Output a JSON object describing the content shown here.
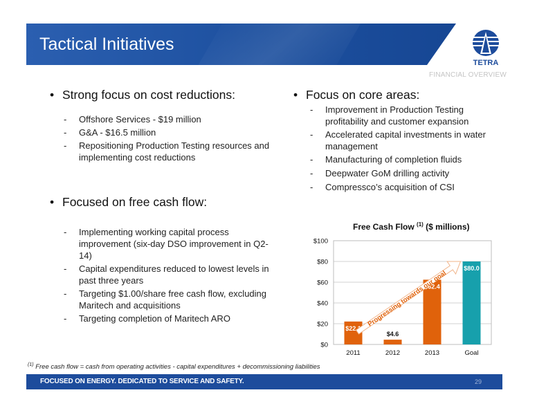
{
  "header": {
    "title": "Tactical Initiatives",
    "section_label": "FINANCIAL OVERVIEW",
    "logo_text": "TETRA"
  },
  "left": {
    "bullet1": "Strong focus on cost reductions:",
    "bullet1_items": [
      "Offshore Services - $19 million",
      "G&A  - $16.5 million",
      "Repositioning Production Testing resources and implementing cost reductions"
    ],
    "bullet2": "Focused on free cash flow:",
    "bullet2_items": [
      "Implementing working capital process improvement (six-day DSO improvement in Q2-14)",
      "Capital expenditures reduced to lowest levels in past three years",
      "Targeting $1.00/share free cash flow, excluding Maritech and acquisitions",
      "Targeting completion of Maritech ARO"
    ]
  },
  "right": {
    "bullet": "Focus on core areas:",
    "items": [
      "Improvement in Production Testing profitability and customer expansion",
      "Accelerated capital investments in water management",
      "Manufacturing of completion fluids",
      "Deepwater GoM drilling activity",
      "Compressco’s acquisition of CSI"
    ]
  },
  "chart_title": {
    "main": "Free Cash Flow",
    "sup": "(1)",
    "unit": "($ millions)"
  },
  "chart_data": {
    "type": "bar",
    "categories": [
      "2011",
      "2012",
      "2013",
      "Goal"
    ],
    "values": [
      22.1,
      4.6,
      62.4,
      80.0
    ],
    "value_labels": [
      "$22.1",
      "$4.6",
      "$62.4",
      "$80.0"
    ],
    "colors": [
      "#e0620b",
      "#e0620b",
      "#e0620b",
      "#17a0ac"
    ],
    "ylim": [
      0,
      100
    ],
    "yticks": [
      0,
      20,
      40,
      60,
      80,
      100
    ],
    "ytick_labels": [
      "$0",
      "$20",
      "$40",
      "$60",
      "$80",
      "$100"
    ],
    "annotation": "Progressing towards our goal",
    "annotation_color": "#e0620b",
    "gridlines": true
  },
  "footnote": {
    "sup": "(1)",
    "text": "Free cash flow =  cash from operating activities - capital expenditures + decommissioning liabilities"
  },
  "footer": {
    "tagline": "FOCUSED ON ENERGY. DEDICATED TO SERVICE AND SAFETY.",
    "page_number": "29"
  }
}
